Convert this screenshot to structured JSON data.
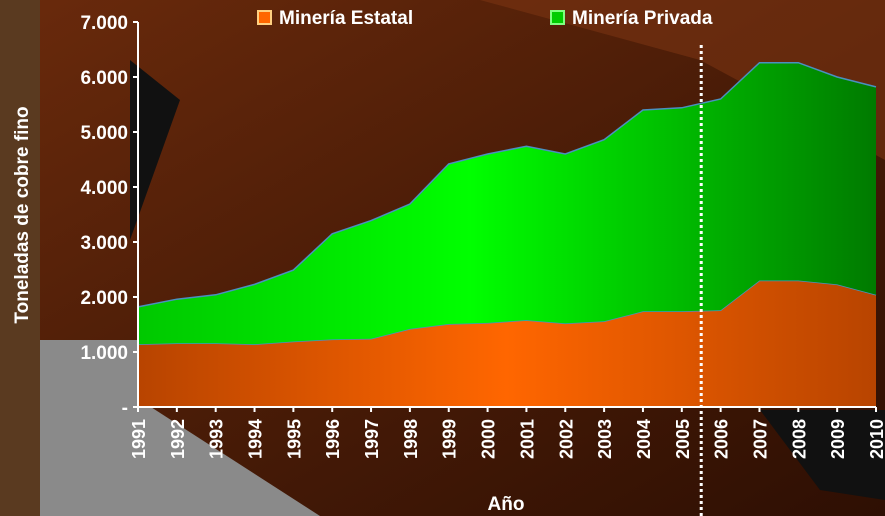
{
  "chart_data": {
    "type": "stacked_area",
    "x_label": "Año",
    "y_label": "Toneladas de cobre fino",
    "categories": [
      "1991",
      "1992",
      "1993",
      "1994",
      "1995",
      "1996",
      "1997",
      "1998",
      "1999",
      "2000",
      "2001",
      "2002",
      "2003",
      "2004",
      "2005",
      "2006",
      "2007",
      "2008",
      "2009",
      "2010"
    ],
    "series": [
      {
        "name": "Minería Estatal",
        "color": "#ff6600",
        "values": [
          1140,
          1160,
          1160,
          1140,
          1190,
          1230,
          1240,
          1420,
          1510,
          1530,
          1580,
          1520,
          1560,
          1740,
          1740,
          1760,
          2300,
          2300,
          2230,
          2040
        ]
      },
      {
        "name": "Minería Privada",
        "color": "#00cc00",
        "values": [
          680,
          800,
          880,
          1090,
          1300,
          1920,
          2150,
          2270,
          2910,
          3070,
          3160,
          3080,
          3300,
          3660,
          3700,
          3840,
          3960,
          3960,
          3770,
          3780
        ]
      }
    ],
    "ylim": [
      0,
      7000
    ],
    "yticks": [
      {
        "value": 0,
        "label": "-"
      },
      {
        "value": 1000,
        "label": "1.000"
      },
      {
        "value": 2000,
        "label": "2.000"
      },
      {
        "value": 3000,
        "label": "3.000"
      },
      {
        "value": 4000,
        "label": "4.000"
      },
      {
        "value": 5000,
        "label": "5.000"
      },
      {
        "value": 6000,
        "label": "6.000"
      },
      {
        "value": 7000,
        "label": "7.000"
      }
    ],
    "legend": "top"
  }
}
